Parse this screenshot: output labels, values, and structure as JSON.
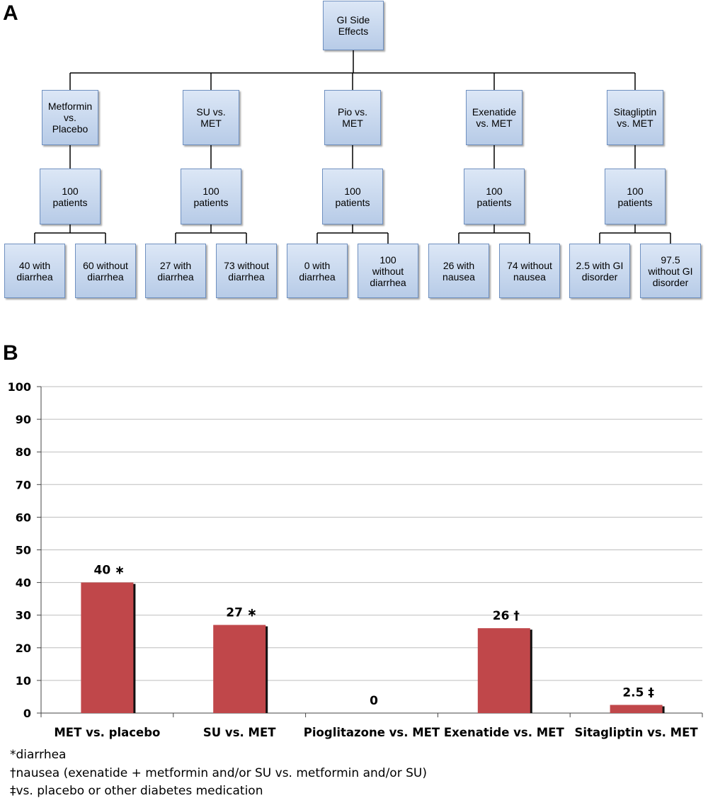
{
  "panel_a": {
    "letter": "A",
    "root": "GI Side\nEffects",
    "comparisons": [
      {
        "label": "Metformin\nvs.\nPlacebo",
        "patients": "100\npatients",
        "with": "40 with\ndiarrhea",
        "without": "60 without\ndiarrhea"
      },
      {
        "label": "SU vs.\nMET",
        "patients": "100\npatients",
        "with": "27 with\ndiarrhea",
        "without": "73 without\ndiarrhea"
      },
      {
        "label": "Pio vs.\nMET",
        "patients": "100\npatients",
        "with": "0 with\ndiarrhea",
        "without": "100\nwithout\ndiarrhea"
      },
      {
        "label": "Exenatide\nvs. MET",
        "patients": "100\npatients",
        "with": "26 with\nnausea",
        "without": "74 without\nnausea"
      },
      {
        "label": "Sitagliptin\nvs. MET",
        "patients": "100\npatients",
        "with": "2.5 with GI\ndisorder",
        "without": "97.5\nwithout GI\ndisorder"
      }
    ]
  },
  "panel_b": {
    "letter": "B"
  },
  "chart_data": {
    "type": "bar",
    "categories": [
      "MET vs. placebo",
      "SU vs. MET",
      "Pioglitazone vs. MET",
      "Exenatide vs. MET",
      "Sitagliptin vs. MET"
    ],
    "values": [
      40,
      27,
      0,
      26,
      2.5
    ],
    "data_labels": [
      "40 ∗",
      "27  ∗",
      "0",
      "26 †",
      "2.5 ‡"
    ],
    "yticks": [
      0,
      10,
      20,
      30,
      40,
      50,
      60,
      70,
      80,
      90,
      100
    ],
    "ylim": [
      0,
      100
    ],
    "grid": true,
    "bar_color": "#c0474a",
    "shadow_color": "#111111"
  },
  "footnotes": [
    "*diarrhea",
    "†nausea (exenatide + metformin and/or SU vs. metformin and/or SU)",
    "‡vs. placebo or other diabetes medication"
  ]
}
